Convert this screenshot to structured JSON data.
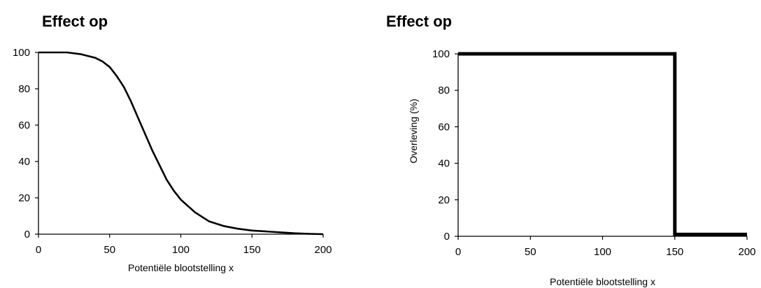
{
  "chart_data": [
    {
      "type": "line",
      "title": "Effect op",
      "xlabel": "Potentiële blootstelling x",
      "ylabel": "",
      "xlim": [
        0,
        200
      ],
      "ylim": [
        0,
        100
      ],
      "xticks": [
        "0",
        "50",
        "100",
        "150",
        "200"
      ],
      "yticks": [
        "0",
        "20",
        "40",
        "60",
        "80",
        "100"
      ],
      "grid": false,
      "series": [
        {
          "x": [
            0,
            10,
            20,
            30,
            40,
            45,
            50,
            55,
            60,
            65,
            70,
            75,
            80,
            85,
            90,
            95,
            100,
            110,
            120,
            130,
            140,
            150,
            160,
            170,
            180,
            190,
            200
          ],
          "y": [
            100,
            100,
            100,
            99,
            97,
            95,
            92,
            87,
            81,
            73,
            64,
            55,
            46,
            38,
            30,
            24,
            19,
            12,
            7,
            4.5,
            3,
            2,
            1.5,
            1,
            0.5,
            0.2,
            0
          ]
        }
      ]
    },
    {
      "type": "line",
      "title": "Effect op",
      "xlabel": "Potentiële blootstelling x",
      "ylabel": "Overleving (%)",
      "xlim": [
        0,
        200
      ],
      "ylim": [
        0,
        100
      ],
      "xticks": [
        "0",
        "50",
        "100",
        "150",
        "200"
      ],
      "yticks": [
        "0",
        "20",
        "40",
        "60",
        "80",
        "100"
      ],
      "grid": false,
      "series": [
        {
          "x": [
            0,
            150,
            150,
            200
          ],
          "y": [
            100,
            100,
            1,
            1
          ]
        }
      ]
    }
  ]
}
